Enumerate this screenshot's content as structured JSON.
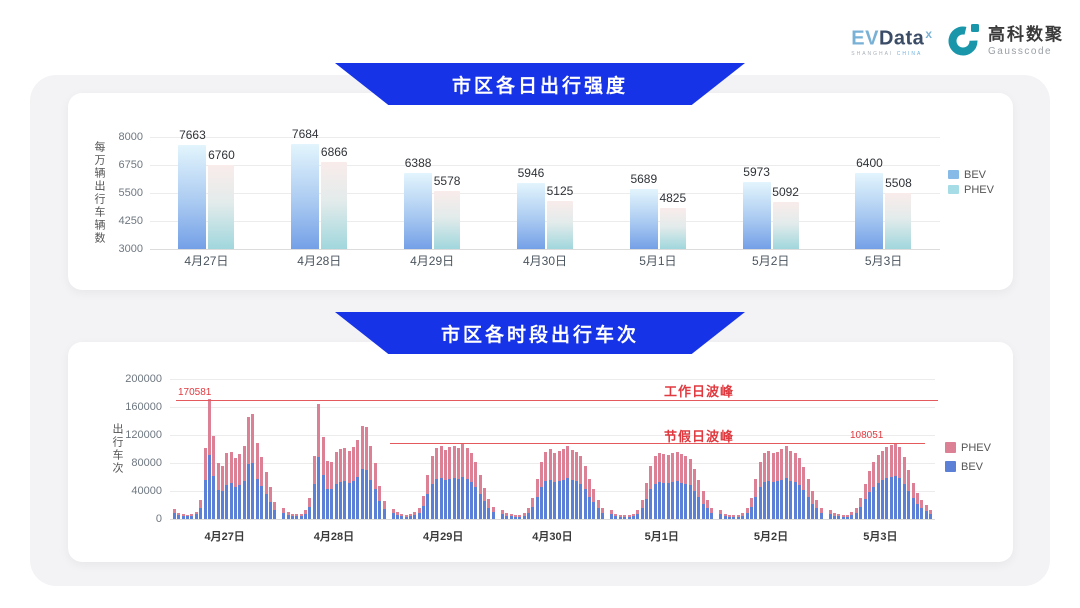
{
  "header": {
    "evdata_logo": {
      "ev": "EV",
      "data": "Data",
      "sup": "x",
      "tagline_left": "SHANGHAI",
      "tagline_right": "CHINA"
    },
    "gausscode_logo": {
      "cn": "高科数聚",
      "en": "Gausscode"
    }
  },
  "colors": {
    "banner_blue": "#1733e8",
    "bev_bar_gradient_top": "#e3f5fd",
    "bev_bar_gradient_bottom": "#74a0e7",
    "phev_bar_gradient_top": "#f9eceb",
    "phev_bar_gradient_bottom": "#a0d7dd",
    "hourly_bev": "#5b80d5",
    "hourly_phev": "#db8095",
    "annotation_red": "#e0393f",
    "gausscode_teal": "#1a96ab"
  },
  "chart_data": [
    {
      "type": "bar",
      "title": "市区各日出行强度",
      "ylabel": "每万辆出行车辆数",
      "categories": [
        "4月27日",
        "4月28日",
        "4月29日",
        "4月30日",
        "5月1日",
        "5月2日",
        "5月3日"
      ],
      "series": [
        {
          "name": "BEV",
          "values": [
            7663,
            7684,
            6388,
            5946,
            5689,
            5973,
            6400
          ]
        },
        {
          "name": "PHEV",
          "values": [
            6760,
            6866,
            5578,
            5125,
            4825,
            5092,
            5508
          ]
        }
      ],
      "yticks": [
        3000,
        4250,
        5500,
        6750,
        8000
      ],
      "ylim": [
        3000,
        8000
      ],
      "grid": true,
      "legend": [
        "BEV",
        "PHEV"
      ],
      "legend_position": "right"
    },
    {
      "type": "stacked-bar",
      "title": "市区各时段出行车次",
      "ylabel": "出行车次",
      "categories": [
        "4月27日",
        "4月28日",
        "4月29日",
        "4月30日",
        "5月1日",
        "5月2日",
        "5月3日"
      ],
      "hours_per_day": 24,
      "series": [
        {
          "name": "BEV",
          "values": [
            [
              9000,
              6000,
              4500,
              4000,
              4200,
              6500,
              15000,
              55000,
              91000,
              62000,
              41000,
              40000,
              48000,
              52000,
              46000,
              48000,
              54000,
              78000,
              80000,
              57000,
              47000,
              35000,
              24000,
              13000
            ],
            [
              9000,
              6000,
              4800,
              4200,
              4800,
              7000,
              17000,
              50000,
              88000,
              63000,
              43000,
              43000,
              50000,
              53000,
              54000,
              51000,
              54000,
              60000,
              71000,
              70000,
              56000,
              43000,
              26000,
              14000
            ],
            [
              8000,
              5000,
              4000,
              3400,
              3700,
              5000,
              9000,
              18000,
              35000,
              50000,
              57000,
              58000,
              55000,
              57000,
              58000,
              57000,
              60000,
              57000,
              53000,
              45000,
              35000,
              25000,
              16000,
              10000
            ],
            [
              7300,
              4800,
              3600,
              3100,
              3400,
              4800,
              8400,
              17000,
              31000,
              46000,
              54000,
              55000,
              53000,
              54000,
              55000,
              58000,
              55000,
              54000,
              50000,
              43000,
              32000,
              24000,
              16000,
              9000
            ],
            [
              6700,
              4500,
              3400,
              2800,
              3100,
              4500,
              7800,
              16000,
              29000,
              43000,
              50000,
              53000,
              52000,
              52000,
              53000,
              54000,
              52000,
              50000,
              48000,
              40000,
              31000,
              22000,
              15000,
              8400
            ],
            [
              6700,
              4500,
              3400,
              2800,
              3400,
              4800,
              8400,
              17000,
              31000,
              45000,
              53000,
              54000,
              53000,
              54000,
              56000,
              58000,
              54000,
              53000,
              49000,
              41000,
              31000,
              22000,
              15000,
              8400
            ],
            [
              7400,
              4800,
              3700,
              3100,
              3400,
              5100,
              9100,
              17000,
              28000,
              38000,
              46000,
              52000,
              56000,
              58000,
              60000,
              62000,
              58000,
              50000,
              40000,
              30000,
              22000,
              15000,
              11000,
              7400
            ]
          ]
        },
        {
          "name": "PHEV",
          "values": [
            [
              5000,
              3000,
              2500,
              2000,
              2300,
              3500,
              11000,
              45000,
              79581,
              57000,
              39000,
              36000,
              46000,
              44000,
              42000,
              44000,
              50000,
              67000,
              70000,
              52000,
              41000,
              31000,
              21000,
              12000
            ],
            [
              7000,
              4000,
              3200,
              2800,
              3200,
              5000,
              13000,
              40000,
              76000,
              54000,
              40000,
              39000,
              45000,
              47000,
              47000,
              45000,
              48000,
              53000,
              62000,
              61000,
              49000,
              37000,
              22000,
              12000
            ],
            [
              6000,
              4000,
              3000,
              2600,
              2800,
              4000,
              7000,
              14000,
              27000,
              40000,
              44000,
              46000,
              43000,
              45000,
              46000,
              44000,
              47000,
              44000,
              41000,
              35000,
              27000,
              19000,
              13000,
              7000
            ],
            [
              5700,
              3700,
              2900,
              2400,
              2600,
              3700,
              6600,
              13000,
              25000,
              36000,
              42000,
              44000,
              42000,
              43000,
              44000,
              45000,
              43000,
              42000,
              40000,
              33000,
              26000,
              18000,
              12000,
              7000
            ],
            [
              5300,
              3500,
              2600,
              2200,
              2400,
              3500,
              6200,
              12000,
              23000,
              33000,
              40000,
              42000,
              41000,
              40000,
              41000,
              42000,
              41000,
              40000,
              37000,
              32000,
              24000,
              18000,
              11000,
              6600
            ],
            [
              5300,
              3500,
              2600,
              2200,
              2600,
              3700,
              6600,
              13000,
              25000,
              35000,
              41000,
              43000,
              42000,
              42000,
              44000,
              45000,
              43000,
              41000,
              39000,
              33000,
              25000,
              18000,
              11000,
              6600
            ],
            [
              5600,
              3700,
              2800,
              2400,
              2600,
              3900,
              6900,
              13000,
              22000,
              30000,
              36000,
              40000,
              42000,
              44000,
              45000,
              46051,
              44000,
              38000,
              30000,
              22000,
              16000,
              12000,
              8000,
              5600
            ]
          ]
        }
      ],
      "yticks": [
        0,
        40000,
        80000,
        120000,
        160000,
        200000
      ],
      "ylim": [
        0,
        200000
      ],
      "grid": true,
      "legend": [
        "PHEV",
        "BEV"
      ],
      "legend_position": "right",
      "annotations": {
        "workday_peak": {
          "label": "工作日波峰",
          "value": 170581,
          "value_label": "170581"
        },
        "holiday_peak": {
          "label": "节假日波峰",
          "value": 108051,
          "value_label": "108051"
        }
      }
    }
  ]
}
